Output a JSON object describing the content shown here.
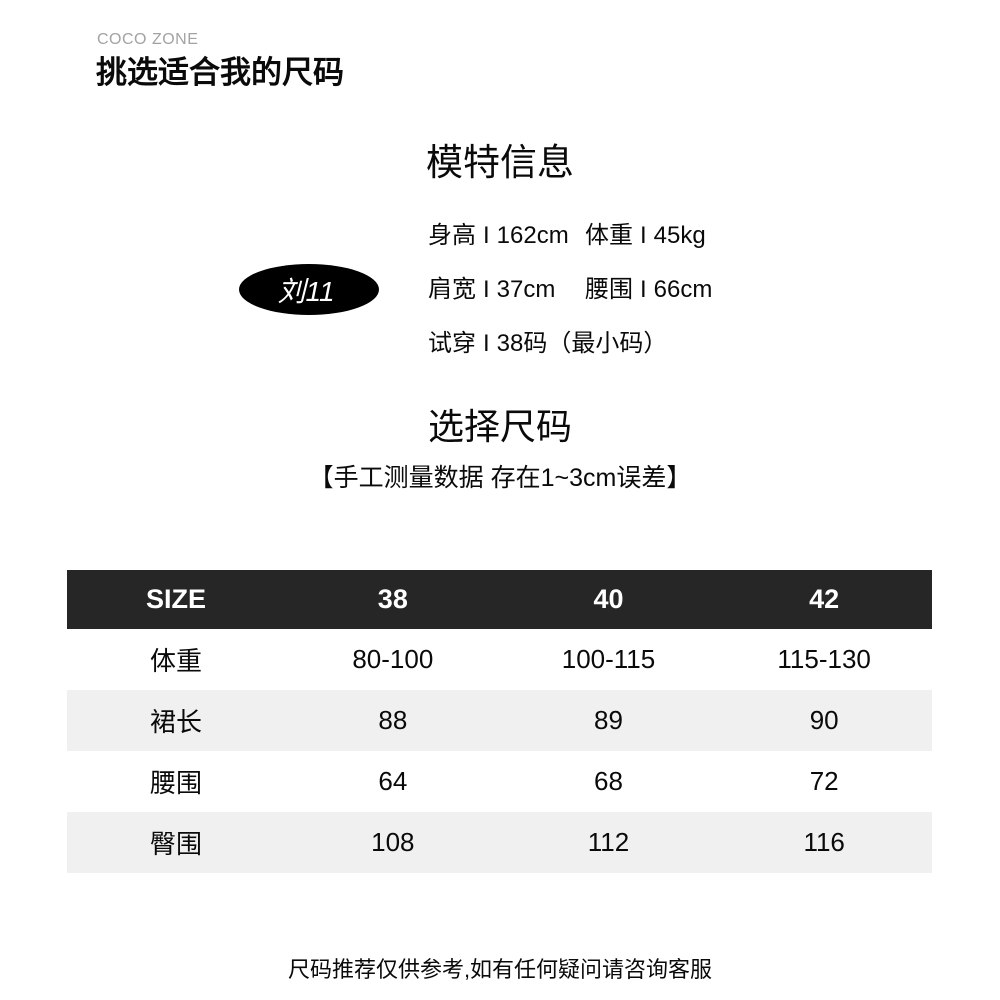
{
  "brand": {
    "name": "COCO ZONE",
    "title": "挑选适合我的尺码"
  },
  "model": {
    "heading": "模特信息",
    "badge": "刘11",
    "separator": "I",
    "stats": [
      {
        "label": "身高",
        "value": "162cm"
      },
      {
        "label": "体重",
        "value": "45kg"
      },
      {
        "label": "肩宽",
        "value": "37cm"
      },
      {
        "label": "腰围",
        "value": "66cm"
      },
      {
        "label": "试穿",
        "value": "38码（最小码）"
      }
    ]
  },
  "sizing": {
    "heading": "选择尺码",
    "note": "【手工测量数据 存在1~3cm误差】"
  },
  "table": {
    "headers": [
      "SIZE",
      "38",
      "40",
      "42"
    ],
    "rows": [
      {
        "label": "体重",
        "values": [
          "80-100",
          "100-115",
          "115-130"
        ]
      },
      {
        "label": "裙长",
        "values": [
          "88",
          "89",
          "90"
        ]
      },
      {
        "label": "腰围",
        "values": [
          "64",
          "68",
          "72"
        ]
      },
      {
        "label": "臀围",
        "values": [
          "108",
          "112",
          "116"
        ]
      }
    ]
  },
  "footer": {
    "note": "尺码推荐仅供参考,如有任何疑问请咨询客服"
  },
  "colors": {
    "table_header_bg": "#262626",
    "row_stripe_bg": "#f0f0f0",
    "brand_gray": "#a3a3a3"
  }
}
